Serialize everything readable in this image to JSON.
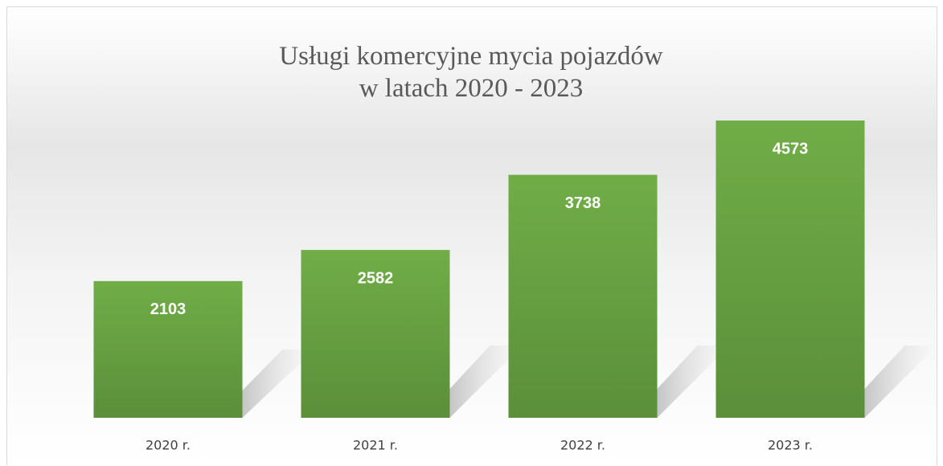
{
  "chart_data": {
    "type": "bar",
    "title": "Usługi komercyjne mycia pojazdów\nw latach 2020 - 2023",
    "categories": [
      "2020 r.",
      "2021 r.",
      "2022 r.",
      "2023 r."
    ],
    "values": [
      2103,
      2582,
      3738,
      4573
    ],
    "color": "#70ad47"
  }
}
